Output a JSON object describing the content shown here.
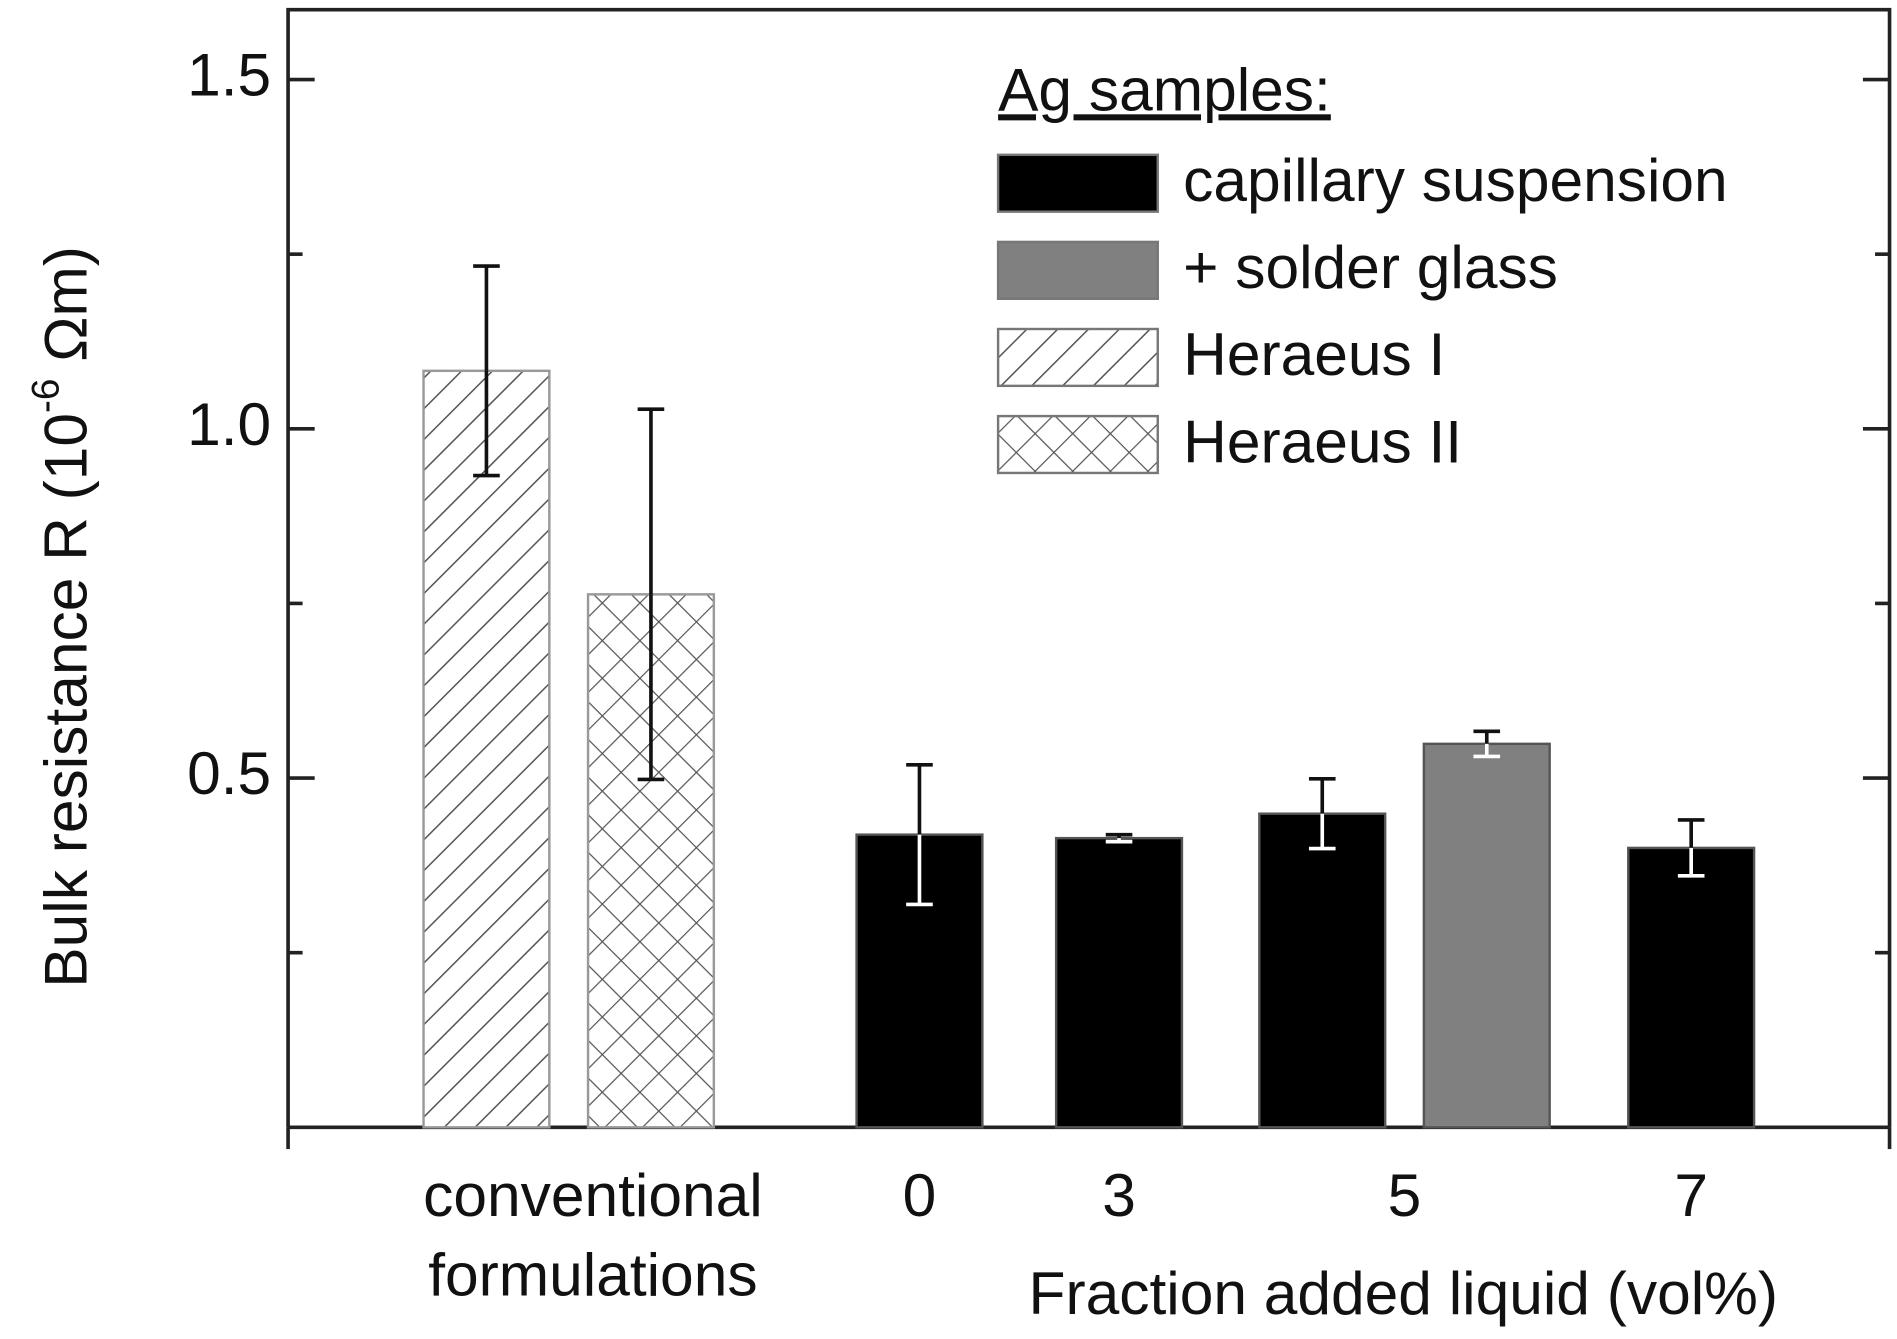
{
  "chart_data": {
    "type": "bar",
    "y_label": "Bulk resistance R (10",
    "y_label_exponent": "-6",
    "y_label_unit": " Ωm)",
    "x_label": "Fraction added liquid (vol%)",
    "legend_title": "Ag samples:",
    "categories": [
      [
        "conventional",
        "formulations"
      ],
      "0",
      "3",
      "5",
      "7"
    ],
    "series": [
      {
        "name": "capillary suspension",
        "color": "#000000",
        "pattern": "solid",
        "values": [
          null,
          0.419,
          0.414,
          0.449,
          0.4
        ],
        "errors": [
          null,
          0.1,
          0.005,
          0.05,
          0.04
        ]
      },
      {
        "name": "+ solder glass",
        "color": "#808080",
        "pattern": "solid",
        "values": [
          null,
          null,
          null,
          0.549,
          null
        ],
        "errors": [
          null,
          null,
          null,
          0.018,
          null
        ]
      },
      {
        "name": "Heraeus I",
        "color": "#ffffff",
        "pattern": "hatch",
        "values": [
          1.083,
          null,
          null,
          null,
          null
        ],
        "errors": [
          0.15,
          null,
          null,
          null,
          null
        ]
      },
      {
        "name": "Heraeus II",
        "color": "#ffffff",
        "pattern": "crosshatch",
        "values": [
          0.763,
          null,
          null,
          null,
          null
        ],
        "errors": [
          0.265,
          null,
          null,
          null,
          null
        ]
      }
    ],
    "ylim": [
      0,
      1.6
    ],
    "yticks": [
      0.5,
      {
        "value": 1,
        "label": "1.0"
      },
      1.5
    ],
    "yminor_ticks": [
      0.25,
      0.75,
      1.25
    ]
  }
}
